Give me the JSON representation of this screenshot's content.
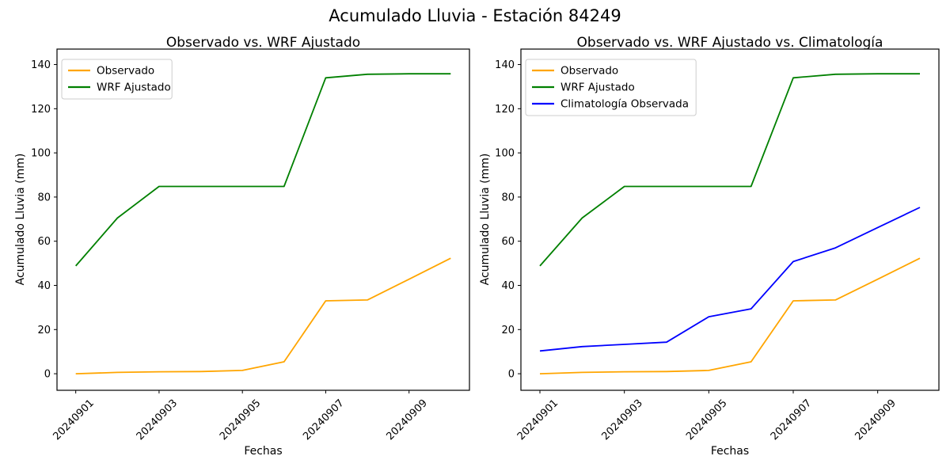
{
  "page_title": "Acumulado Lluvia - Estación 84249",
  "colors": {
    "observado": "#FFA500",
    "wrf_ajustado": "#008000",
    "climatologia": "#0000FF",
    "spine": "#000000",
    "legend_border": "#cccccc",
    "background": "#ffffff"
  },
  "chart_data": [
    {
      "type": "line",
      "title": "Observado vs. WRF Ajustado",
      "xlabel": "Fechas",
      "ylabel": "Acumulado Lluvia (mm)",
      "x": [
        "20240901",
        "20240902",
        "20240903",
        "20240904",
        "20240905",
        "20240906",
        "20240907",
        "20240908",
        "20240909",
        "20240910"
      ],
      "x_tick_labels": [
        "20240901",
        "20240903",
        "20240905",
        "20240907",
        "20240909"
      ],
      "x_tick_rotation": 45,
      "y_ticks": [
        0,
        20,
        40,
        60,
        80,
        100,
        120,
        140
      ],
      "ylim": [
        -7.5,
        147
      ],
      "grid": false,
      "legend_position": "upper-left",
      "series": [
        {
          "name": "Observado",
          "color": "#FFA500",
          "values": [
            0,
            0.6,
            0.9,
            1.0,
            1.5,
            5.4,
            33.0,
            33.4,
            42.8,
            52.3
          ]
        },
        {
          "name": "WRF Ajustado",
          "color": "#008000",
          "values": [
            48.8,
            70.5,
            84.8,
            84.8,
            84.8,
            84.8,
            134.0,
            135.6,
            135.8,
            135.8
          ]
        }
      ]
    },
    {
      "type": "line",
      "title": "Observado vs. WRF Ajustado vs. Climatología",
      "xlabel": "Fechas",
      "ylabel": "Acumulado Lluvia (mm)",
      "x": [
        "20240901",
        "20240902",
        "20240903",
        "20240904",
        "20240905",
        "20240906",
        "20240907",
        "20240908",
        "20240909",
        "20240910"
      ],
      "x_tick_labels": [
        "20240901",
        "20240903",
        "20240905",
        "20240907",
        "20240909"
      ],
      "x_tick_rotation": 45,
      "y_ticks": [
        0,
        20,
        40,
        60,
        80,
        100,
        120,
        140
      ],
      "ylim": [
        -7.5,
        147
      ],
      "grid": false,
      "legend_position": "upper-left",
      "series": [
        {
          "name": "Observado",
          "color": "#FFA500",
          "values": [
            0,
            0.6,
            0.9,
            1.0,
            1.5,
            5.4,
            33.0,
            33.4,
            42.8,
            52.3
          ]
        },
        {
          "name": "WRF Ajustado",
          "color": "#008000",
          "values": [
            48.8,
            70.5,
            84.8,
            84.8,
            84.8,
            84.8,
            134.0,
            135.6,
            135.8,
            135.8
          ]
        },
        {
          "name": "Climatología Observada",
          "color": "#0000FF",
          "values": [
            10.3,
            12.3,
            13.3,
            14.3,
            25.8,
            29.4,
            50.8,
            57.0,
            66.2,
            75.3
          ]
        }
      ]
    }
  ]
}
